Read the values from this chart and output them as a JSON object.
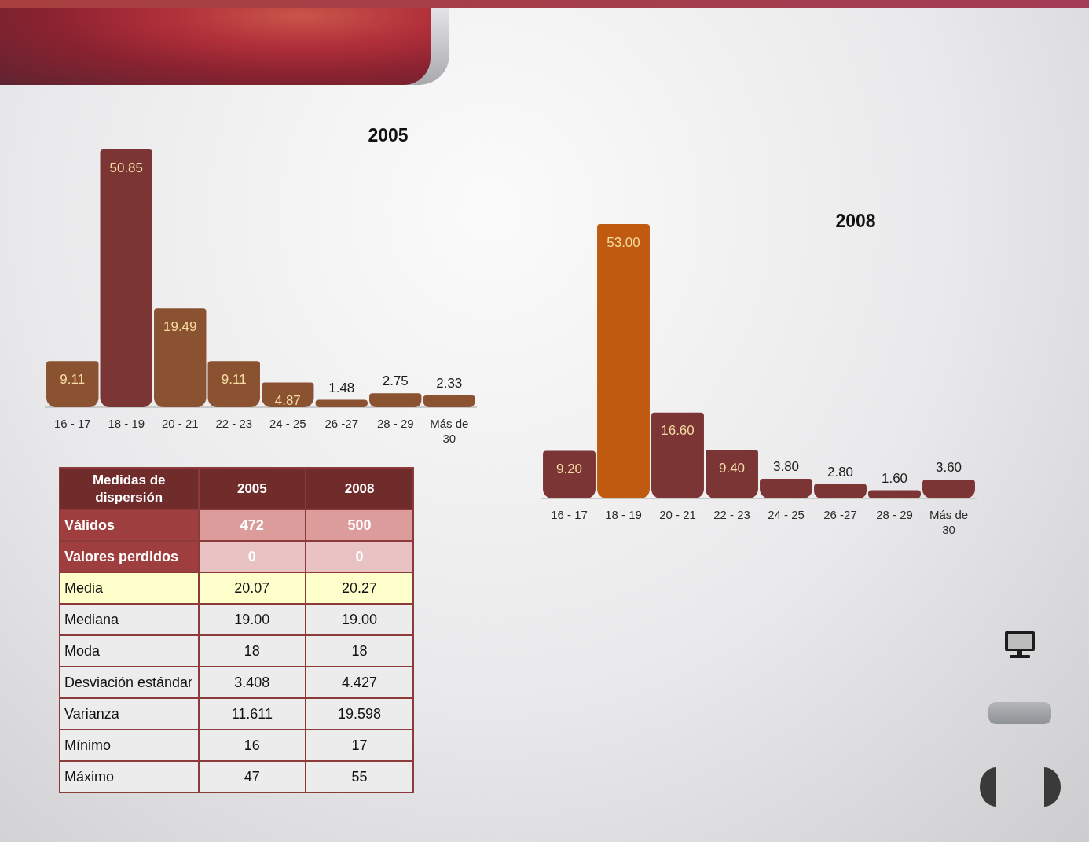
{
  "chart_data": [
    {
      "type": "bar",
      "title": "2005",
      "categories": [
        "16 - 17",
        "18 - 19",
        "20 - 21",
        "22 - 23",
        "24 - 25",
        "26 -27",
        "28 - 29",
        "Más de 30"
      ],
      "values": [
        9.11,
        50.85,
        19.49,
        9.11,
        4.87,
        1.48,
        2.75,
        2.33
      ],
      "colors": [
        "#8a5230",
        "#7b3535",
        "#8a5230",
        "#8a5230",
        "#8a5230",
        "#8a5230",
        "#8a5230",
        "#8a5230"
      ],
      "value_labels": [
        "9.11",
        "50.85",
        "19.49",
        "9.11",
        "4.87",
        "1.48",
        "2.75",
        "2.33"
      ],
      "tick_labels": "x"
    },
    {
      "type": "bar",
      "title": "2008",
      "categories": [
        "16 - 17",
        "18 - 19",
        "20 - 21",
        "22 - 23",
        "24 - 25",
        "26 -27",
        "28 - 29",
        "Más de 30"
      ],
      "values": [
        9.2,
        53,
        16.6,
        9.4,
        3.8,
        2.8,
        1.6,
        3.6
      ],
      "colors": [
        "#7b3535",
        "#c05a10",
        "#7b3535",
        "#7b3535",
        "#7b3535",
        "#7b3535",
        "#7b3535",
        "#7b3535"
      ],
      "value_labels": [
        "9.20",
        "53.00",
        "16.60",
        "9.40",
        "3.80",
        "2.80",
        "1.60",
        "3.60"
      ],
      "tick_labels": "x"
    },
    {
      "type": "other",
      "title": "Medidas de dispersión",
      "categories": [
        "Válidos",
        "Valores perdidos",
        "Media",
        "Mediana",
        "Moda",
        "Desviación estándar",
        "Varianza",
        "Mínimo",
        "Máximo"
      ],
      "series": [
        {
          "name": "2005",
          "values": [
            472,
            0,
            20.07,
            19,
            18,
            3.408,
            11.611,
            16,
            47
          ],
          "value_labels": [
            "472",
            "0",
            "20.07",
            "19.00",
            "18",
            "3.408",
            "11.611",
            "16",
            "47"
          ],
          "colors": [
            "#dd9c9c",
            "#e9c3c3",
            "#ffffcc",
            "#ececec",
            "#ececec",
            "#ececec",
            "#ececec",
            "#ececec",
            "#ececec"
          ]
        },
        {
          "name": "2008",
          "values": [
            500,
            0,
            20.27,
            19,
            18,
            4.427,
            19.598,
            17,
            55
          ],
          "value_labels": [
            "500",
            "0",
            "20.27",
            "19.00",
            "18",
            "4.427",
            "19.598",
            "17",
            "55"
          ],
          "colors": [
            "#dd9c9c",
            "#e9c3c3",
            "#ffffcc",
            "#ececec",
            "#ececec",
            "#ececec",
            "#ececec",
            "#ececec",
            "#ececec"
          ]
        }
      ]
    }
  ]
}
